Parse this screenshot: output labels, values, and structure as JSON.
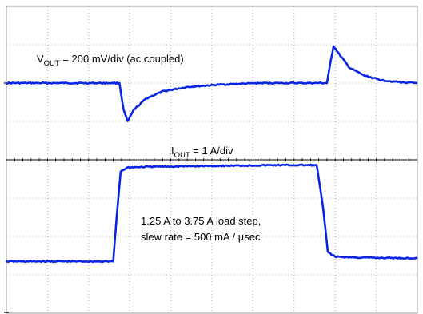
{
  "chart_data": {
    "type": "line",
    "title": "",
    "xlabel": "",
    "ylabel": "",
    "grid": true,
    "divisions": {
      "x": 10,
      "y": 8
    },
    "trace_color": "#0a24e6",
    "grid_color": "#9a9a9a",
    "series": [
      {
        "channel": "V_OUT",
        "scale": "200 mV/div (ac coupled)",
        "x_div": [
          0,
          2.75,
          2.85,
          2.95,
          3.1,
          3.4,
          3.8,
          4.4,
          5.2,
          6.2,
          7.8,
          7.88,
          7.96,
          8.1,
          8.35,
          8.7,
          9.1,
          9.6,
          10
        ],
        "y_div_from_bottom": [
          6.0,
          6.0,
          5.3,
          5.0,
          5.3,
          5.6,
          5.78,
          5.9,
          5.96,
          6.0,
          6.0,
          6.5,
          6.97,
          6.75,
          6.4,
          6.2,
          6.08,
          6.02,
          6.0
        ]
      },
      {
        "channel": "I_OUT",
        "scale": "1 A/div",
        "step": "1.25 A to 3.75 A load step,",
        "slew_rate": "slew rate = 500 mA / µsec",
        "x_div": [
          0,
          2.6,
          2.68,
          2.78,
          2.95,
          3.5,
          5.0,
          6.5,
          7.55,
          7.7,
          7.82,
          8.0,
          8.5,
          10
        ],
        "y_div_from_bottom": [
          1.35,
          1.35,
          2.5,
          3.7,
          3.8,
          3.82,
          3.84,
          3.86,
          3.86,
          2.8,
          1.6,
          1.47,
          1.45,
          1.43
        ]
      }
    ],
    "annotations": {
      "vout_prefix": "V",
      "vout_sub": "OUT",
      "vout_text": " = 200 mV/div (ac coupled)",
      "iout_prefix": "I",
      "iout_sub": "OUT",
      "iout_text": " = 1 A/div",
      "step_line1": "1.25 A to 3.75 A load step,",
      "step_line2": "slew rate = 500 mA / µsec"
    }
  }
}
